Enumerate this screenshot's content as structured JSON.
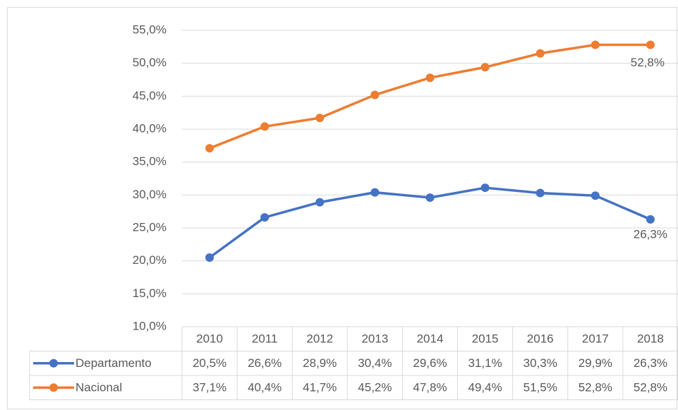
{
  "chart_data": {
    "type": "line",
    "categories": [
      "2010",
      "2011",
      "2012",
      "2013",
      "2014",
      "2015",
      "2016",
      "2017",
      "2018"
    ],
    "series": [
      {
        "name": "Departamento",
        "color": "#4472c4",
        "values": [
          20.5,
          26.6,
          28.9,
          30.4,
          29.6,
          31.1,
          30.3,
          29.9,
          26.3
        ],
        "value_labels": [
          "20,5%",
          "26,6%",
          "28,9%",
          "30,4%",
          "29,6%",
          "31,1%",
          "30,3%",
          "29,9%",
          "26,3%"
        ]
      },
      {
        "name": "Nacional",
        "color": "#ed7d31",
        "values": [
          37.1,
          40.4,
          41.7,
          45.2,
          47.8,
          49.4,
          51.5,
          52.8,
          52.8
        ],
        "value_labels": [
          "37,1%",
          "40,4%",
          "41,7%",
          "45,2%",
          "47,8%",
          "49,4%",
          "51,5%",
          "52,8%",
          "52,8%"
        ]
      }
    ],
    "ylim": [
      10,
      55
    ],
    "yticks": [
      {
        "value": 10,
        "label": "10,0%"
      },
      {
        "value": 15,
        "label": "15,0%"
      },
      {
        "value": 20,
        "label": "20,0%"
      },
      {
        "value": 25,
        "label": "25,0%"
      },
      {
        "value": 30,
        "label": "30,0%"
      },
      {
        "value": 35,
        "label": "35,0%"
      },
      {
        "value": 40,
        "label": "40,0%"
      },
      {
        "value": 45,
        "label": "45,0%"
      },
      {
        "value": 50,
        "label": "50,0%"
      },
      {
        "value": 55,
        "label": "55,0%"
      }
    ],
    "grid": true
  }
}
